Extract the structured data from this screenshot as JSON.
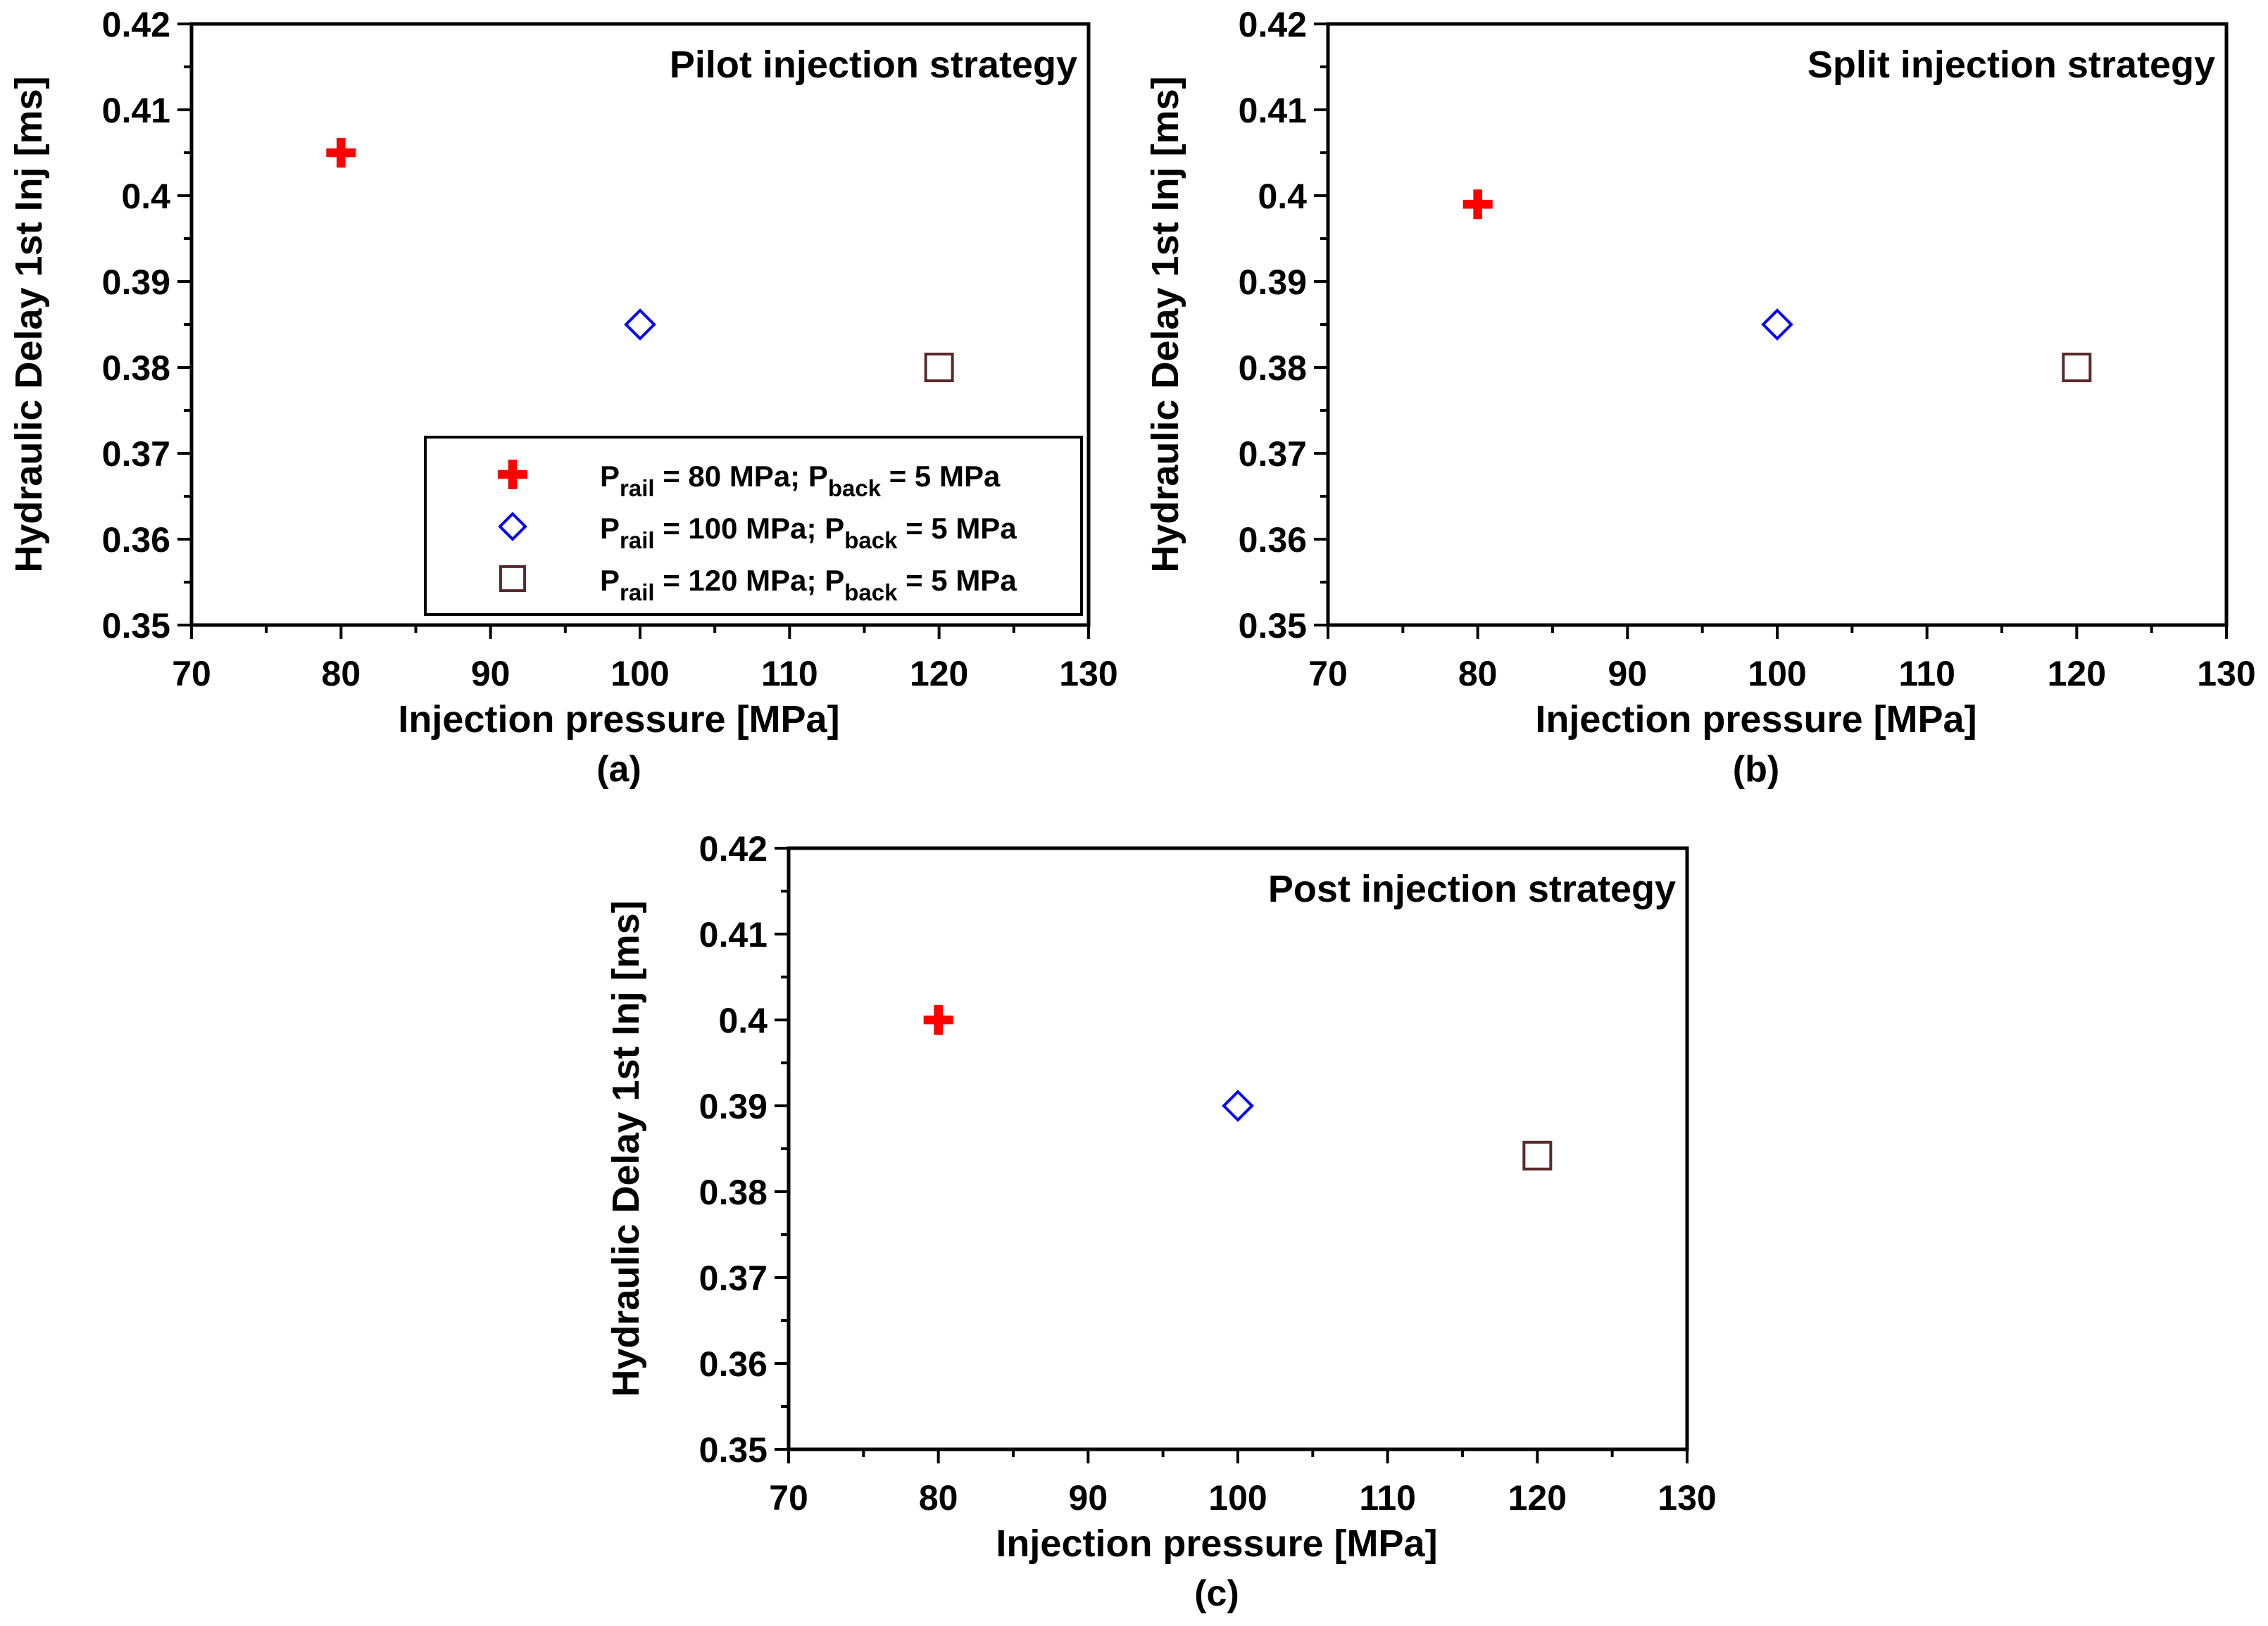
{
  "chart_data": [
    {
      "panel_label": "(a)",
      "type": "scatter",
      "annotation": "Pilot injection strategy",
      "xlabel": "Injection pressure [MPa]",
      "ylabel": "Hydraulic Delay 1st Inj [ms]",
      "xlim": [
        70,
        130
      ],
      "ylim": [
        0.35,
        0.42
      ],
      "xticks": [
        70,
        80,
        90,
        100,
        110,
        120,
        130
      ],
      "xtick_labels": [
        "70",
        "80",
        "90",
        "100",
        "110",
        "120",
        "130"
      ],
      "yticks": [
        0.35,
        0.36,
        0.37,
        0.38,
        0.39,
        0.4,
        0.41,
        0.42
      ],
      "ytick_labels": [
        "0.35",
        "0.36",
        "0.37",
        "0.38",
        "0.39",
        "0.4",
        "0.41",
        "0.42"
      ],
      "series": [
        {
          "name": "P_rail = 80 MPa; P_back = 5 MPa",
          "marker": "plus",
          "x": [
            80
          ],
          "y": [
            0.405
          ]
        },
        {
          "name": "P_rail = 100 MPa; P_back = 5 MPa",
          "marker": "diamond",
          "x": [
            100
          ],
          "y": [
            0.385
          ]
        },
        {
          "name": "P_rail = 120 MPa; P_back = 5 MPa",
          "marker": "square",
          "x": [
            120
          ],
          "y": [
            0.38
          ]
        }
      ],
      "legend": true,
      "legend_position": "bottom-right"
    },
    {
      "panel_label": "(b)",
      "type": "scatter",
      "annotation": "Split injection strategy",
      "xlabel": "Injection pressure [MPa]",
      "ylabel": "Hydraulic Delay 1st Inj [ms]",
      "xlim": [
        70,
        130
      ],
      "ylim": [
        0.35,
        0.42
      ],
      "xticks": [
        70,
        80,
        90,
        100,
        110,
        120,
        130
      ],
      "xtick_labels": [
        "70",
        "80",
        "90",
        "100",
        "110",
        "120",
        "130"
      ],
      "yticks": [
        0.35,
        0.36,
        0.37,
        0.38,
        0.39,
        0.4,
        0.41,
        0.42
      ],
      "ytick_labels": [
        "0.35",
        "0.36",
        "0.37",
        "0.38",
        "0.39",
        "0.4",
        "0.41",
        "0.42"
      ],
      "series": [
        {
          "name": "P_rail = 80 MPa; P_back = 5 MPa",
          "marker": "plus",
          "x": [
            80
          ],
          "y": [
            0.399
          ]
        },
        {
          "name": "P_rail = 100 MPa; P_back = 5 MPa",
          "marker": "diamond",
          "x": [
            100
          ],
          "y": [
            0.385
          ]
        },
        {
          "name": "P_rail = 120 MPa; P_back = 5 MPa",
          "marker": "square",
          "x": [
            120
          ],
          "y": [
            0.38
          ]
        }
      ],
      "legend": false
    },
    {
      "panel_label": "(c)",
      "type": "scatter",
      "annotation": "Post injection strategy",
      "xlabel": "Injection pressure [MPa]",
      "ylabel": "Hydraulic Delay 1st Inj [ms]",
      "xlim": [
        70,
        130
      ],
      "ylim": [
        0.35,
        0.42
      ],
      "xticks": [
        70,
        80,
        90,
        100,
        110,
        120,
        130
      ],
      "xtick_labels": [
        "70",
        "80",
        "90",
        "100",
        "110",
        "120",
        "130"
      ],
      "yticks": [
        0.35,
        0.36,
        0.37,
        0.38,
        0.39,
        0.4,
        0.41,
        0.42
      ],
      "ytick_labels": [
        "0.35",
        "0.36",
        "0.37",
        "0.38",
        "0.39",
        "0.4",
        "0.41",
        "0.42"
      ],
      "series": [
        {
          "name": "P_rail = 80 MPa; P_back = 5 MPa",
          "marker": "plus",
          "x": [
            80
          ],
          "y": [
            0.4
          ]
        },
        {
          "name": "P_rail = 100 MPa; P_back = 5 MPa",
          "marker": "diamond",
          "x": [
            100
          ],
          "y": [
            0.39
          ]
        },
        {
          "name": "P_rail = 120 MPa; P_back = 5 MPa",
          "marker": "square",
          "x": [
            120
          ],
          "y": [
            0.3842
          ]
        }
      ],
      "legend": false
    }
  ],
  "legend": {
    "entries": [
      {
        "marker": "plus",
        "p1": "P",
        "s1": "rail",
        "t1": " = 80 MPa; ",
        "p2": "P",
        "s2": "back",
        "t2": " = 5 MPa"
      },
      {
        "marker": "diamond",
        "p1": "P",
        "s1": "rail",
        "t1": " = 100 MPa; ",
        "p2": "P",
        "s2": "back",
        "t2": " = 5 MPa"
      },
      {
        "marker": "square",
        "p1": "P",
        "s1": "rail",
        "t1": " = 120 MPa; ",
        "p2": "P",
        "s2": "back",
        "t2": " = 5 MPa"
      }
    ]
  },
  "colors": {
    "plus": "#ff0000",
    "diamond": "#0000ff",
    "square": "#5a2a2a",
    "axis": "#000000",
    "background": "#ffffff"
  }
}
